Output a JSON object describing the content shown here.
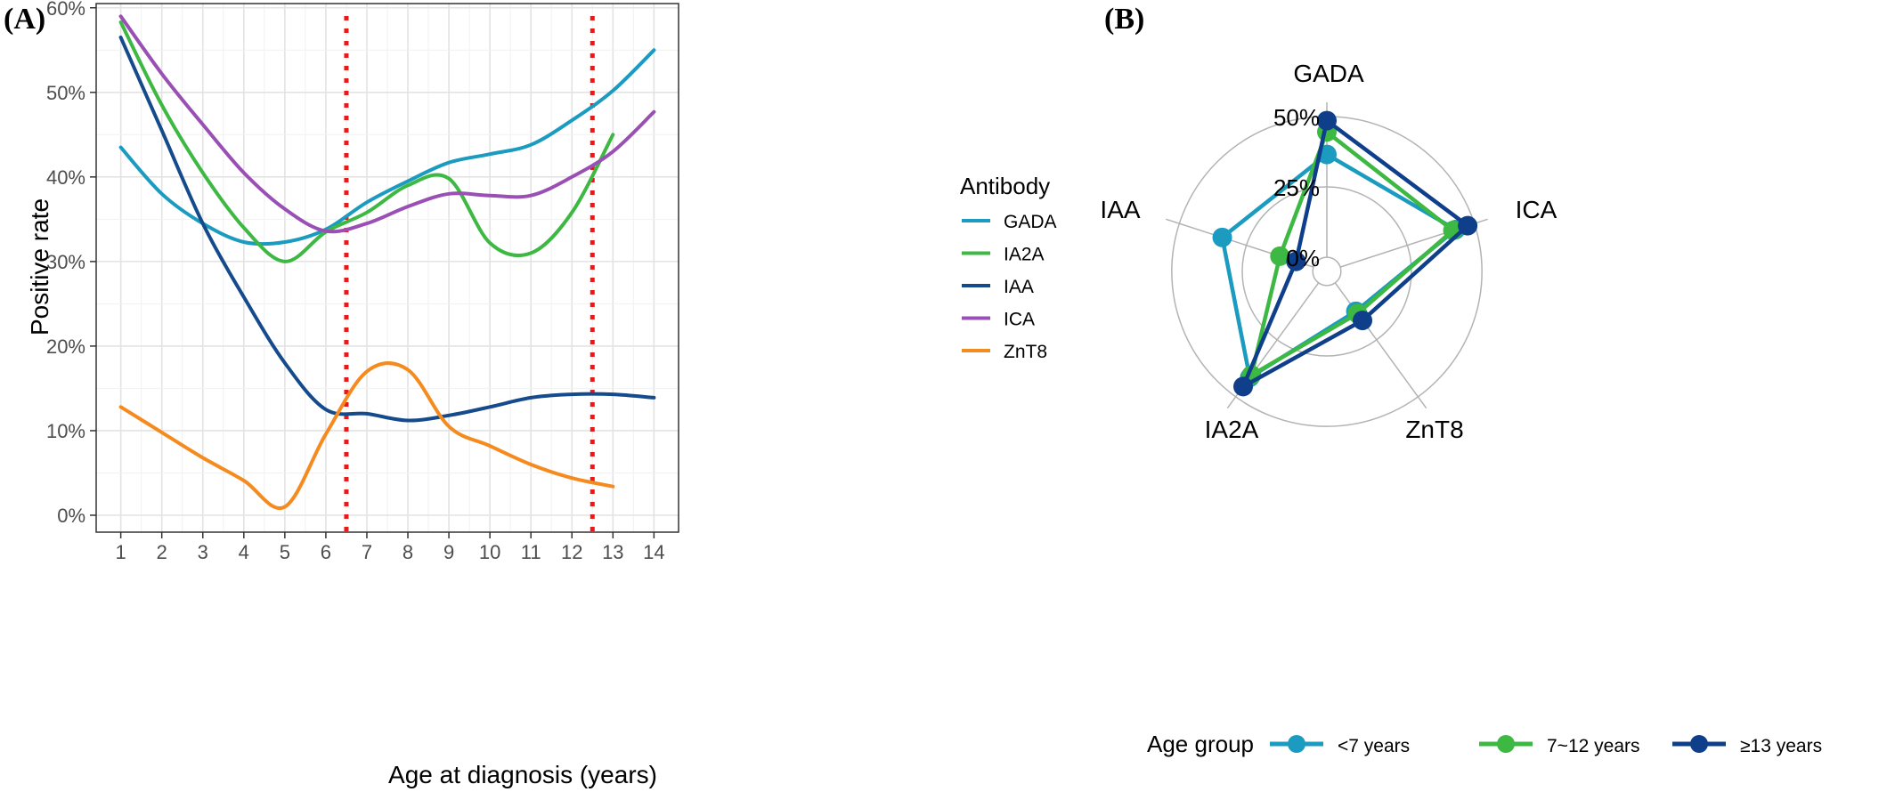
{
  "panel_a_label": "(A)",
  "panel_b_label": "(B)",
  "colors": {
    "GADA": "#1a9bbf",
    "IA2A": "#3db843",
    "IAA": "#154b8c",
    "ICA": "#9a4fb5",
    "ZnT8": "#f58a1f",
    "cutoff": "#e8191a",
    "lt7": "#1a9bbf",
    "7to12": "#3db843",
    "ge13": "#0f3f8a"
  },
  "chart_data": [
    {
      "type": "line",
      "title": "",
      "xlabel": "Age at diagnosis (years)",
      "ylabel": "Positive rate",
      "x": [
        1,
        2,
        3,
        4,
        5,
        6,
        7,
        8,
        9,
        10,
        11,
        12,
        13,
        14
      ],
      "xlim": [
        0.4,
        14.6
      ],
      "ylim": [
        -2,
        60.5
      ],
      "x_ticks": [
        "1",
        "2",
        "3",
        "4",
        "5",
        "6",
        "7",
        "8",
        "9",
        "10",
        "11",
        "12",
        "13",
        "14"
      ],
      "y_ticks": [
        0,
        10,
        20,
        30,
        40,
        50,
        60
      ],
      "y_tick_labels": [
        "0%",
        "10%",
        "20%",
        "30%",
        "40%",
        "50%",
        "60%"
      ],
      "grid": true,
      "vlines": [
        6.5,
        12.5
      ],
      "legend_title": "Antibody",
      "legend_position": "right",
      "series": [
        {
          "name": "GADA",
          "x": [
            1,
            2,
            3,
            4,
            5,
            6,
            7,
            8,
            9,
            10,
            11,
            12,
            13,
            14
          ],
          "values": [
            43.5,
            38.0,
            34.5,
            32.3,
            32.3,
            33.8,
            37.0,
            39.5,
            41.7,
            42.7,
            43.8,
            46.7,
            50.2,
            55.0
          ]
        },
        {
          "name": "IA2A",
          "x": [
            1,
            2,
            3,
            4,
            5,
            6,
            7,
            8,
            9,
            10,
            11,
            12,
            13
          ],
          "values": [
            58.3,
            48.5,
            40.5,
            34.0,
            30.0,
            33.5,
            35.8,
            39.0,
            39.8,
            32.2,
            31.0,
            35.8,
            45.0
          ]
        },
        {
          "name": "IAA",
          "x": [
            1,
            2,
            3,
            4,
            5,
            6,
            7,
            8,
            9,
            10,
            11,
            12,
            13,
            14
          ],
          "values": [
            56.5,
            45.5,
            34.5,
            25.8,
            18.0,
            12.5,
            12.0,
            11.2,
            11.8,
            12.8,
            13.9,
            14.3,
            14.3,
            13.9
          ]
        },
        {
          "name": "ICA",
          "x": [
            1,
            2,
            3,
            4,
            5,
            6,
            7,
            8,
            9,
            10,
            11,
            12,
            13,
            14
          ],
          "values": [
            59.0,
            52.2,
            46.2,
            40.5,
            36.2,
            33.6,
            34.5,
            36.5,
            38.0,
            37.8,
            37.8,
            40.0,
            43.0,
            47.7
          ]
        },
        {
          "name": "ZnT8",
          "x": [
            1,
            2,
            3,
            4,
            5,
            6,
            7,
            8,
            9,
            10,
            11,
            12,
            13
          ],
          "values": [
            12.8,
            9.8,
            6.8,
            4.1,
            1.0,
            9.6,
            17.0,
            17.2,
            10.5,
            8.2,
            6.0,
            4.4,
            3.4
          ]
        }
      ]
    },
    {
      "type": "radar",
      "title": "",
      "axes": [
        "GADA",
        "ICA",
        "ZnT8",
        "IA2A",
        "IAA"
      ],
      "radial_ticks": [
        0,
        25,
        50
      ],
      "radial_tick_labels": [
        "0%",
        "25%",
        "50%"
      ],
      "radial_range": [
        -5,
        55
      ],
      "legend_title": "Age group",
      "legend_position": "bottom",
      "series": [
        {
          "name": "<7 years",
          "values": [
            36.5,
            43.0,
            12.5,
            41.5,
            34.0
          ]
        },
        {
          "name": "7~12 years",
          "values": [
            44.5,
            42.0,
            13.5,
            40.5,
            12.5
          ]
        },
        {
          "name": "≥13 years",
          "values": [
            48.5,
            47.5,
            16.5,
            45.5,
            6.5
          ]
        }
      ]
    }
  ]
}
